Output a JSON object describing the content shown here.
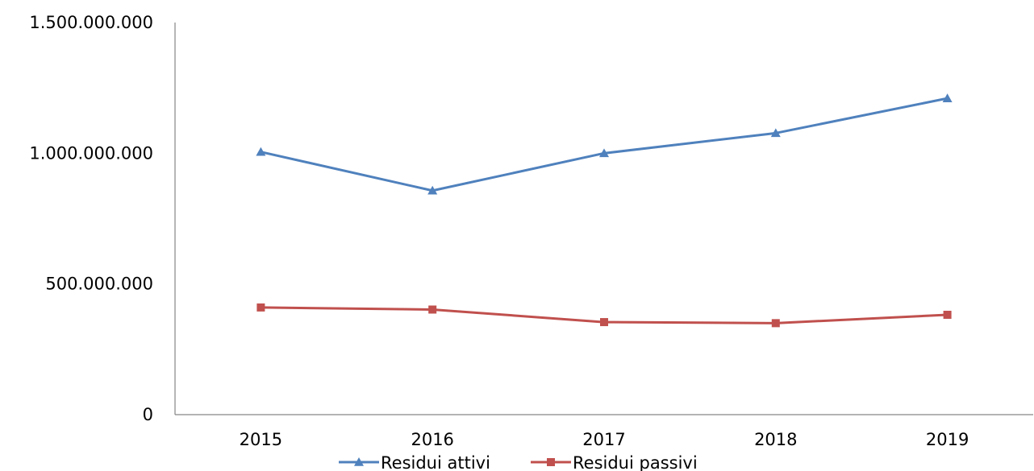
{
  "chart_data": {
    "type": "line",
    "title": "",
    "xlabel": "",
    "ylabel": "",
    "categories": [
      "2015",
      "2016",
      "2017",
      "2018",
      "2019"
    ],
    "ylim": [
      0,
      1500000000
    ],
    "yticks": [
      {
        "value": 0,
        "label": "0"
      },
      {
        "value": 500000000,
        "label": "500.000.000"
      },
      {
        "value": 1000000000,
        "label": "1.000.000.000"
      },
      {
        "value": 1500000000,
        "label": "1.500.000.000"
      }
    ],
    "grid": false,
    "legend_position": "bottom",
    "series": [
      {
        "name": "Residui attivi",
        "color": "#4F81BD",
        "marker": "triangle",
        "values": [
          1005000000,
          857000000,
          1000000000,
          1077000000,
          1210000000
        ]
      },
      {
        "name": "Residui passivi",
        "color": "#C0504D",
        "marker": "square",
        "values": [
          410000000,
          402000000,
          354000000,
          350000000,
          382000000
        ]
      }
    ]
  }
}
